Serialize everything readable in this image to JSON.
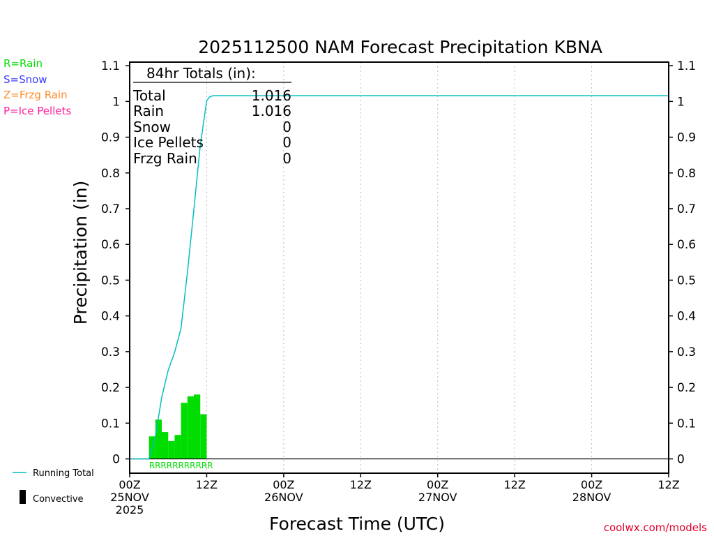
{
  "chart_data": {
    "type": "bar",
    "title": "2025112500 NAM Forecast Precipitation KBNA",
    "ylabel": "Precipitation (in)",
    "xlabel": "Forecast Time (UTC)",
    "ylim": [
      -0.04,
      1.11
    ],
    "xlim_hours": [
      0,
      84
    ],
    "yticks": [
      "0",
      "0.1",
      "0.2",
      "0.3",
      "0.4",
      "0.5",
      "0.6",
      "0.7",
      "0.8",
      "0.9",
      "1",
      "1.1"
    ],
    "ytick_values": [
      0,
      0.1,
      0.2,
      0.3,
      0.4,
      0.5,
      0.6,
      0.7,
      0.8,
      0.9,
      1.0,
      1.1
    ],
    "xticks": [
      {
        "hour": 0,
        "lines": [
          "00Z",
          "25NOV",
          "2025"
        ]
      },
      {
        "hour": 12,
        "lines": [
          "12Z"
        ]
      },
      {
        "hour": 24,
        "lines": [
          "00Z",
          "26NOV"
        ]
      },
      {
        "hour": 36,
        "lines": [
          "12Z"
        ]
      },
      {
        "hour": 48,
        "lines": [
          "00Z",
          "27NOV"
        ]
      },
      {
        "hour": 60,
        "lines": [
          "12Z"
        ]
      },
      {
        "hour": 72,
        "lines": [
          "00Z",
          "28NOV"
        ]
      },
      {
        "hour": 84,
        "lines": [
          "12Z"
        ]
      }
    ],
    "gridlines_hours": [
      12,
      24,
      36,
      48,
      60,
      72
    ],
    "series": [
      {
        "name": "Rain",
        "kind": "bar",
        "color": "#00dd00",
        "hours": [
          4,
          5,
          6,
          7,
          8,
          9,
          10,
          11,
          12,
          13
        ],
        "values": [
          0.063,
          0.11,
          0.075,
          0.05,
          0.067,
          0.157,
          0.175,
          0.18,
          0.125,
          0.0
        ]
      },
      {
        "name": "Running Total",
        "kind": "line",
        "color": "#00c0c0",
        "hours": [
          0,
          3,
          4,
          5,
          6,
          7,
          8,
          9,
          10,
          11,
          12,
          12.5,
          13,
          84
        ],
        "values": [
          0,
          0,
          0.063,
          0.173,
          0.248,
          0.298,
          0.365,
          0.522,
          0.697,
          0.877,
          1.002,
          1.013,
          1.016,
          1.016
        ]
      }
    ],
    "precip_type_codes": {
      "hours": [
        3,
        13
      ],
      "letter": "R",
      "count": 11,
      "color": "#00dd00"
    }
  },
  "totals": {
    "heading": "84hr Totals (in):",
    "rows": [
      {
        "label": "Total",
        "value": "1.016"
      },
      {
        "label": "Rain",
        "value": "1.016"
      },
      {
        "label": "Snow",
        "value": "0"
      },
      {
        "label": "Ice Pellets",
        "value": "0"
      },
      {
        "label": "Frzg Rain",
        "value": "0"
      }
    ]
  },
  "type_legend": [
    {
      "text": "R=Rain",
      "color": "#00dd00"
    },
    {
      "text": "S=Snow",
      "color": "#3a3aff"
    },
    {
      "text": "Z=Frzg Rain",
      "color": "#ff8c2a"
    },
    {
      "text": "P=Ice Pellets",
      "color": "#ff1d9e"
    }
  ],
  "bottom_legend": {
    "running_total": "Running Total",
    "convective": "Convective"
  },
  "credit": "coolwx.com/models",
  "colors": {
    "axis": "#000000",
    "grid": "#bbbbbb",
    "zero_line": "#000000",
    "credit": "#e0002a"
  }
}
